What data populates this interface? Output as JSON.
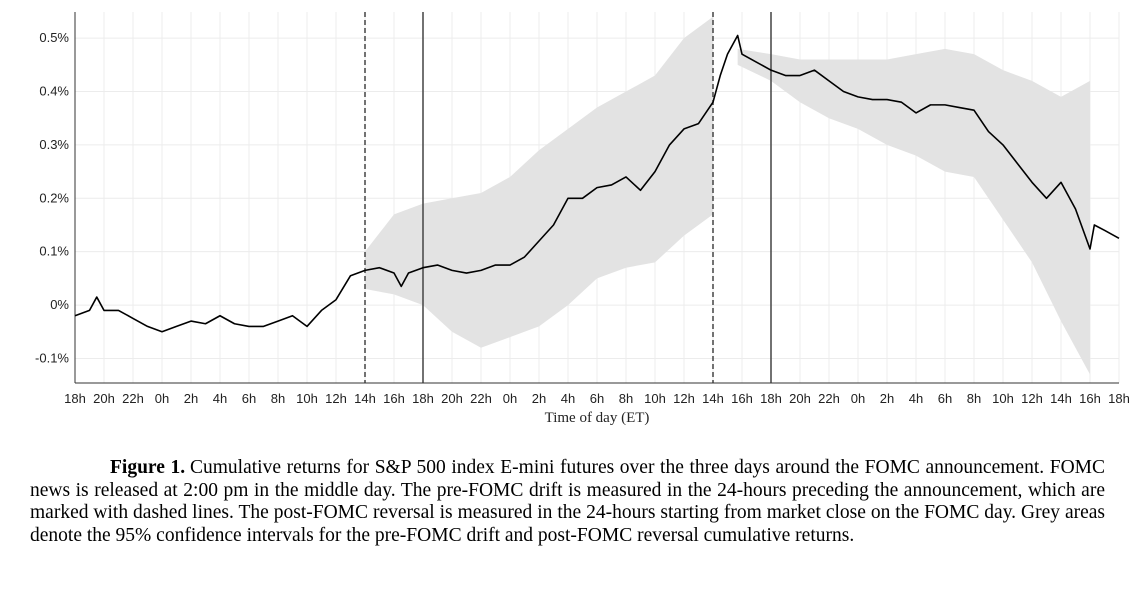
{
  "chart_data": {
    "type": "line",
    "x_label": "Time of day (ET)",
    "xlim": [
      0,
      72
    ],
    "ylim": [
      -0.146,
      0.549
    ],
    "xticks": [
      {
        "value": 0,
        "label": "18h"
      },
      {
        "value": 2,
        "label": "20h"
      },
      {
        "value": 4,
        "label": "22h"
      },
      {
        "value": 6,
        "label": "0h"
      },
      {
        "value": 8,
        "label": "2h"
      },
      {
        "value": 10,
        "label": "4h"
      },
      {
        "value": 12,
        "label": "6h"
      },
      {
        "value": 14,
        "label": "8h"
      },
      {
        "value": 16,
        "label": "10h"
      },
      {
        "value": 18,
        "label": "12h"
      },
      {
        "value": 20,
        "label": "14h"
      },
      {
        "value": 22,
        "label": "16h"
      },
      {
        "value": 24,
        "label": "18h"
      },
      {
        "value": 26,
        "label": "20h"
      },
      {
        "value": 28,
        "label": "22h"
      },
      {
        "value": 30,
        "label": "0h"
      },
      {
        "value": 32,
        "label": "2h"
      },
      {
        "value": 34,
        "label": "4h"
      },
      {
        "value": 36,
        "label": "6h"
      },
      {
        "value": 38,
        "label": "8h"
      },
      {
        "value": 40,
        "label": "10h"
      },
      {
        "value": 42,
        "label": "12h"
      },
      {
        "value": 44,
        "label": "14h"
      },
      {
        "value": 46,
        "label": "16h"
      },
      {
        "value": 48,
        "label": "18h"
      },
      {
        "value": 50,
        "label": "20h"
      },
      {
        "value": 52,
        "label": "22h"
      },
      {
        "value": 54,
        "label": "0h"
      },
      {
        "value": 56,
        "label": "2h"
      },
      {
        "value": 58,
        "label": "4h"
      },
      {
        "value": 60,
        "label": "6h"
      },
      {
        "value": 62,
        "label": "8h"
      },
      {
        "value": 64,
        "label": "10h"
      },
      {
        "value": 66,
        "label": "12h"
      },
      {
        "value": 68,
        "label": "14h"
      },
      {
        "value": 70,
        "label": "16h"
      },
      {
        "value": 72,
        "label": "18h"
      }
    ],
    "yticks": [
      {
        "value": -0.1,
        "label": "-0.1%"
      },
      {
        "value": 0,
        "label": "0%"
      },
      {
        "value": 0.1,
        "label": "0.1%"
      },
      {
        "value": 0.2,
        "label": "0.2%"
      },
      {
        "value": 0.3,
        "label": "0.3%"
      },
      {
        "value": 0.4,
        "label": "0.4%"
      },
      {
        "value": 0.5,
        "label": "0.5%"
      }
    ],
    "grid": true,
    "x": [
      0,
      1,
      1.5,
      2,
      3,
      4,
      5,
      6,
      7,
      8,
      9,
      10,
      11,
      12,
      13,
      14,
      15,
      16,
      17,
      18,
      19,
      20,
      21,
      22,
      22.5,
      23,
      24,
      25,
      26,
      27,
      28,
      29,
      30,
      31,
      32,
      33,
      34,
      35,
      36,
      37,
      38,
      39,
      40,
      41,
      42,
      43,
      44,
      44.5,
      45,
      45.7,
      46,
      47,
      48,
      49,
      50,
      51,
      52,
      53,
      54,
      55,
      56,
      57,
      58,
      59,
      60,
      61,
      62,
      63,
      64,
      65,
      66,
      67,
      68,
      69,
      70,
      70.3,
      71,
      72
    ],
    "series": [
      {
        "color": "#000000",
        "values": [
          -0.02,
          -0.01,
          0.015,
          -0.01,
          -0.01,
          -0.025,
          -0.04,
          -0.05,
          -0.04,
          -0.03,
          -0.035,
          -0.02,
          -0.035,
          -0.04,
          -0.04,
          -0.03,
          -0.02,
          -0.04,
          -0.01,
          0.01,
          0.055,
          0.065,
          0.07,
          0.06,
          0.035,
          0.06,
          0.07,
          0.075,
          0.065,
          0.06,
          0.065,
          0.075,
          0.075,
          0.09,
          0.12,
          0.15,
          0.2,
          0.2,
          0.22,
          0.225,
          0.24,
          0.215,
          0.25,
          0.3,
          0.33,
          0.34,
          0.38,
          0.43,
          0.47,
          0.505,
          0.47,
          0.455,
          0.44,
          0.43,
          0.43,
          0.44,
          0.42,
          0.4,
          0.39,
          0.385,
          0.385,
          0.38,
          0.36,
          0.375,
          0.375,
          0.37,
          0.365,
          0.325,
          0.3,
          0.265,
          0.23,
          0.2,
          0.23,
          0.18,
          0.105,
          0.15,
          0.14,
          0.125
        ]
      }
    ],
    "band_color": "#e3e3e3",
    "bands": [
      {
        "x": [
          20,
          22,
          24,
          26,
          28,
          30,
          32,
          34,
          36,
          38,
          40,
          42,
          44
        ],
        "lower": [
          0.03,
          0.02,
          0.0,
          -0.05,
          -0.08,
          -0.06,
          -0.04,
          0.0,
          0.05,
          0.07,
          0.08,
          0.13,
          0.17
        ],
        "upper": [
          0.1,
          0.17,
          0.19,
          0.2,
          0.21,
          0.24,
          0.29,
          0.33,
          0.37,
          0.4,
          0.43,
          0.5,
          0.54
        ]
      },
      {
        "x": [
          45.7,
          48,
          50,
          52,
          54,
          56,
          58,
          60,
          62,
          64,
          66,
          68,
          70
        ],
        "lower": [
          0.45,
          0.42,
          0.38,
          0.35,
          0.33,
          0.3,
          0.28,
          0.25,
          0.24,
          0.16,
          0.08,
          -0.03,
          -0.13
        ],
        "upper": [
          0.48,
          0.47,
          0.46,
          0.46,
          0.46,
          0.46,
          0.47,
          0.48,
          0.47,
          0.44,
          0.42,
          0.39,
          0.42
        ]
      }
    ],
    "vlines": [
      {
        "x": 20,
        "style": "dashed"
      },
      {
        "x": 24,
        "style": "solid"
      },
      {
        "x": 44,
        "style": "dashed"
      },
      {
        "x": 48,
        "style": "solid"
      }
    ]
  },
  "caption": {
    "label": "Figure 1.",
    "text": "Cumulative returns for S&P 500 index E-mini futures over the three days around the FOMC announcement. FOMC news is released at 2:00 pm in the middle day. The pre-FOMC drift is measured in the 24-hours preceding the announcement, which are marked with dashed lines. The post-FOMC reversal is measured in the 24-hours starting from market close on the FOMC day. Grey areas denote the 95% confidence intervals for the pre-FOMC drift and post-FOMC reversal cumulative returns."
  }
}
